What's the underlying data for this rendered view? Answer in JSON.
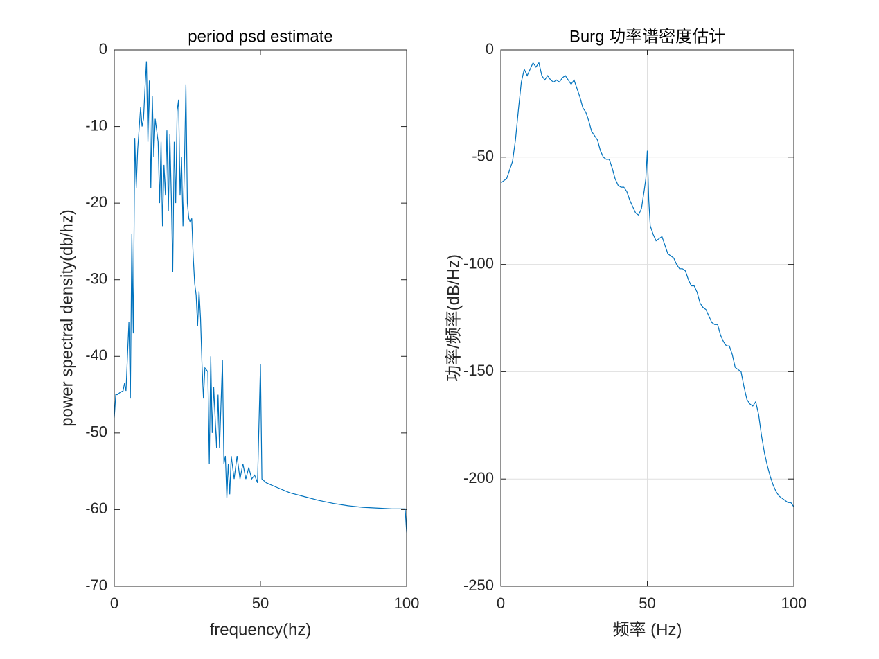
{
  "chart_data": [
    {
      "type": "line",
      "title": "period psd estimate",
      "xlabel": "frequency(hz)",
      "ylabel": "power spectral density(db/hz)",
      "color": "#0072bd",
      "grid": false,
      "xlim": [
        0,
        100
      ],
      "ylim": [
        -70,
        0
      ],
      "xticks": [
        0,
        50,
        100
      ],
      "yticks": [
        -70,
        -60,
        -50,
        -40,
        -30,
        -20,
        -10,
        0
      ],
      "x": [
        0,
        0.5,
        1,
        2,
        3,
        3.5,
        4,
        4.5,
        5,
        5.5,
        6,
        6.5,
        7,
        7.5,
        8,
        9,
        9.5,
        10,
        10.5,
        11,
        11.5,
        12,
        12.5,
        13,
        13.5,
        14,
        15,
        15.5,
        16,
        16.5,
        17,
        17.5,
        18,
        18.5,
        19,
        19.5,
        20,
        20.5,
        21,
        21.5,
        22,
        22.5,
        23,
        23.5,
        24,
        24.5,
        25,
        25.5,
        26,
        26.5,
        27,
        27.5,
        28,
        28.5,
        29,
        29.5,
        30,
        30.5,
        31,
        32,
        32.5,
        33,
        33.5,
        34,
        35,
        35.5,
        36,
        37,
        37.5,
        38,
        38.5,
        39,
        39.5,
        40,
        41,
        42,
        43,
        44,
        45,
        46,
        47,
        48,
        49,
        50,
        50.5,
        52,
        55,
        60,
        65,
        70,
        75,
        80,
        85,
        90,
        95,
        99.5,
        100
      ],
      "values": [
        -48,
        -45,
        -45,
        -44.7,
        -44.5,
        -43.5,
        -44.5,
        -40,
        -35.5,
        -45.5,
        -24,
        -37,
        -11.5,
        -18,
        -13,
        -7.5,
        -10,
        -9,
        -5,
        -1.5,
        -12,
        -4,
        -18,
        -6,
        -14,
        -9,
        -12,
        -20,
        -12,
        -23,
        -15,
        -19,
        -10.5,
        -21,
        -11,
        -19,
        -29,
        -12,
        -20,
        -8,
        -6.5,
        -19,
        -14,
        -23,
        -15,
        -4.5,
        -20,
        -22,
        -22.5,
        -22,
        -27,
        -30.5,
        -32,
        -36,
        -31.5,
        -35,
        -41,
        -45.5,
        -41.5,
        -42,
        -54,
        -40,
        -50,
        -44,
        -52,
        -45,
        -52,
        -40.5,
        -54,
        -53,
        -58.5,
        -54,
        -58,
        -53,
        -56,
        -53,
        -56,
        -54,
        -56,
        -54.5,
        -56,
        -55.5,
        -56.5,
        -41,
        -56,
        -56.5,
        -57,
        -57.8,
        -58.3,
        -58.8,
        -59.2,
        -59.5,
        -59.7,
        -59.8,
        -59.9,
        -59.9,
        -63
      ]
    },
    {
      "type": "line",
      "title": "Burg 功率谱密度估计",
      "xlabel": "频率 (Hz)",
      "ylabel": "功率/频率(dB/Hz)",
      "color": "#0072bd",
      "grid": true,
      "xlim": [
        0,
        100
      ],
      "ylim": [
        -250,
        0
      ],
      "xticks": [
        0,
        50,
        100
      ],
      "yticks": [
        -250,
        -200,
        -150,
        -100,
        -50,
        0
      ],
      "x": [
        0,
        2,
        4,
        5,
        6,
        7,
        8,
        9,
        10,
        11,
        12,
        13,
        14,
        15,
        16,
        17,
        18,
        19,
        20,
        21,
        22,
        23,
        24,
        25,
        27,
        28,
        29,
        30,
        31,
        32,
        33,
        34,
        35,
        36,
        37,
        38,
        39,
        40,
        41,
        42,
        43,
        44,
        45,
        46,
        47,
        48,
        49,
        49.5,
        50,
        50.5,
        51,
        52,
        53,
        54,
        55,
        56,
        57,
        58,
        59,
        60,
        61,
        62,
        63,
        64,
        65,
        66,
        67,
        68,
        69,
        70,
        71,
        72,
        73,
        74,
        75,
        76,
        77,
        78,
        79,
        80,
        81,
        82,
        83,
        84,
        85,
        86,
        87,
        88,
        89,
        90,
        91,
        92,
        93,
        94,
        95,
        96,
        97,
        98,
        99,
        100
      ],
      "values": [
        -62,
        -60,
        -52,
        -42,
        -28,
        -15,
        -9,
        -12,
        -9,
        -6,
        -8,
        -6,
        -12,
        -14,
        -12,
        -14,
        -15,
        -14,
        -15,
        -13,
        -12,
        -14,
        -16,
        -14,
        -22,
        -27,
        -29,
        -33,
        -38,
        -40,
        -42,
        -47,
        -50,
        -51,
        -51,
        -55,
        -60,
        -63,
        -64,
        -64,
        -66,
        -70,
        -73,
        -76,
        -77,
        -74,
        -65,
        -60,
        -47,
        -70,
        -82,
        -86,
        -89,
        -88,
        -87,
        -91,
        -95,
        -96,
        -97,
        -100,
        -102,
        -102,
        -103,
        -107,
        -110,
        -110,
        -113,
        -118,
        -120,
        -121,
        -124,
        -127,
        -128,
        -128,
        -133,
        -136,
        -138,
        -138,
        -142,
        -148,
        -149,
        -150,
        -157,
        -163,
        -165,
        -166,
        -164,
        -170,
        -180,
        -188,
        -194,
        -199,
        -203,
        -206,
        -208,
        -209,
        -210,
        -211,
        -211,
        -213
      ]
    }
  ]
}
